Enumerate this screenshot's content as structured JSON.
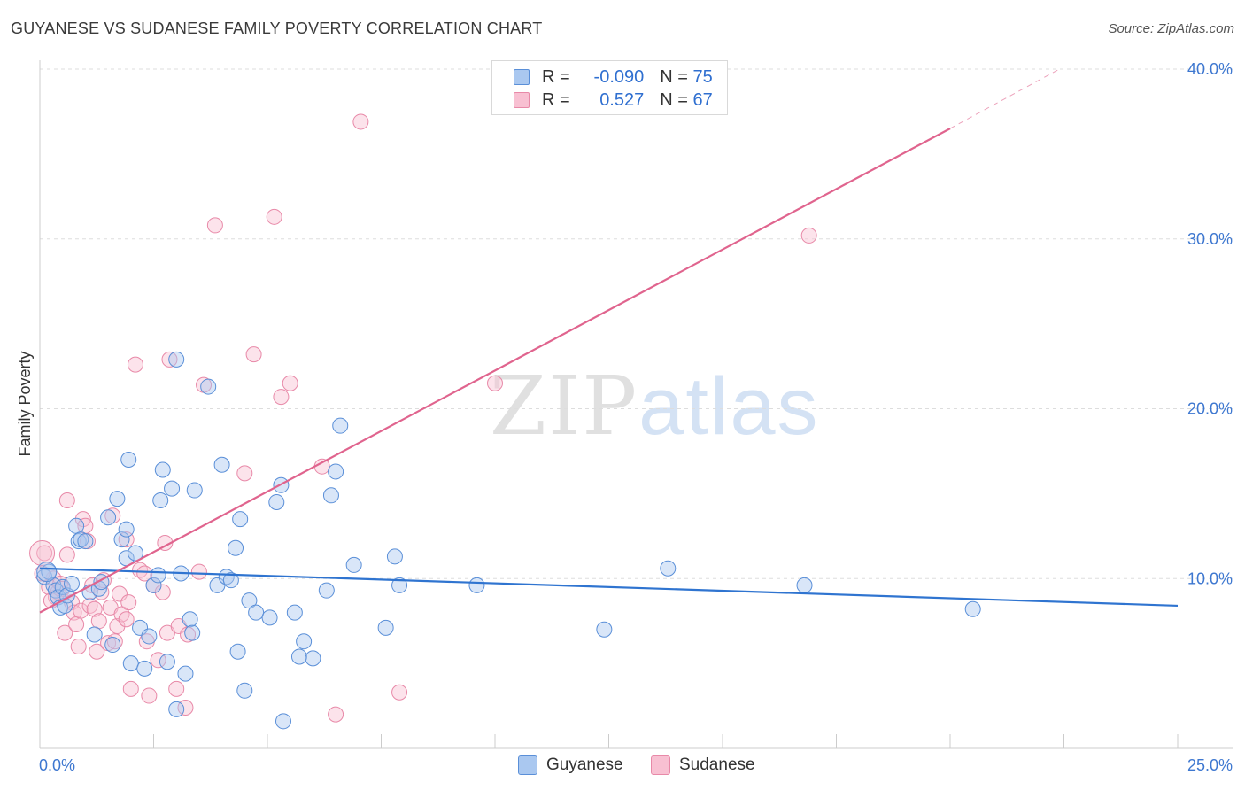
{
  "header": {
    "title": "GUYANESE VS SUDANESE FAMILY POVERTY CORRELATION CHART",
    "source": "Source: ZipAtlas.com"
  },
  "watermark": {
    "zip": "ZIP",
    "atlas": "atlas"
  },
  "colors": {
    "guyanese_fill": "#aac8f0",
    "guyanese_stroke": "#5a8fd8",
    "guyanese_line": "#2f74d0",
    "sudanese_fill": "#f8c0d2",
    "sudanese_stroke": "#e889a8",
    "sudanese_line": "#e0648e",
    "axis_label": "#3d77d0",
    "grid": "#dddddd"
  },
  "legend": {
    "rows": [
      {
        "r_label": "R =",
        "r_value": "-0.090",
        "n_label": "N =",
        "n_value": "75"
      },
      {
        "r_label": "R =",
        "r_value": "0.527",
        "n_label": "N =",
        "n_value": "67"
      }
    ],
    "bottom": [
      {
        "label": "Guyanese"
      },
      {
        "label": "Sudanese"
      }
    ]
  },
  "chart_data": {
    "type": "scatter",
    "title": "GUYANESE VS SUDANESE FAMILY POVERTY CORRELATION CHART",
    "xlabel": "",
    "ylabel": "Family Poverty",
    "xlim": [
      0,
      25
    ],
    "ylim": [
      0,
      40
    ],
    "x_tick_labels": [
      "0.0%",
      "25.0%"
    ],
    "y_ticks": [
      10,
      20,
      30,
      40
    ],
    "y_tick_labels": [
      "10.0%",
      "20.0%",
      "30.0%",
      "40.0%"
    ],
    "grid": true,
    "series": [
      {
        "name": "Guyanese",
        "r": -0.09,
        "n": 75,
        "trend": {
          "x0": 0,
          "y0": 10.6,
          "x1": 25,
          "y1": 8.4
        },
        "points": [
          [
            0.1,
            10.1
          ],
          [
            0.2,
            10.4
          ],
          [
            0.3,
            9.6
          ],
          [
            0.35,
            9.3
          ],
          [
            0.4,
            8.9
          ],
          [
            0.45,
            8.3
          ],
          [
            0.5,
            9.5
          ],
          [
            0.55,
            8.4
          ],
          [
            0.6,
            9.0
          ],
          [
            0.7,
            9.7
          ],
          [
            0.8,
            13.1
          ],
          [
            0.85,
            12.2
          ],
          [
            0.9,
            12.3
          ],
          [
            1.0,
            12.2
          ],
          [
            1.1,
            9.2
          ],
          [
            1.2,
            6.7
          ],
          [
            1.3,
            9.4
          ],
          [
            1.35,
            9.8
          ],
          [
            1.5,
            13.6
          ],
          [
            1.6,
            6.1
          ],
          [
            1.7,
            14.7
          ],
          [
            1.8,
            12.3
          ],
          [
            1.9,
            12.9
          ],
          [
            1.9,
            11.2
          ],
          [
            1.95,
            17.0
          ],
          [
            2.0,
            5.0
          ],
          [
            2.1,
            11.5
          ],
          [
            2.2,
            7.1
          ],
          [
            2.3,
            4.7
          ],
          [
            2.4,
            6.6
          ],
          [
            2.5,
            9.6
          ],
          [
            2.6,
            10.2
          ],
          [
            2.65,
            14.6
          ],
          [
            2.7,
            16.4
          ],
          [
            2.8,
            5.1
          ],
          [
            2.9,
            15.3
          ],
          [
            3.0,
            22.9
          ],
          [
            3.0,
            2.3
          ],
          [
            3.1,
            10.3
          ],
          [
            3.2,
            4.4
          ],
          [
            3.3,
            7.6
          ],
          [
            3.35,
            6.8
          ],
          [
            3.4,
            15.2
          ],
          [
            3.7,
            21.3
          ],
          [
            3.9,
            9.6
          ],
          [
            4.0,
            16.7
          ],
          [
            4.1,
            10.1
          ],
          [
            4.2,
            9.9
          ],
          [
            4.3,
            11.8
          ],
          [
            4.35,
            5.7
          ],
          [
            4.4,
            13.5
          ],
          [
            4.5,
            3.4
          ],
          [
            4.6,
            8.7
          ],
          [
            4.75,
            8.0
          ],
          [
            5.05,
            7.7
          ],
          [
            5.2,
            14.5
          ],
          [
            5.3,
            15.5
          ],
          [
            5.35,
            1.6
          ],
          [
            5.6,
            8.0
          ],
          [
            5.7,
            5.4
          ],
          [
            5.8,
            6.3
          ],
          [
            6.0,
            5.3
          ],
          [
            6.3,
            9.3
          ],
          [
            6.4,
            14.9
          ],
          [
            6.5,
            16.3
          ],
          [
            6.6,
            19.0
          ],
          [
            6.9,
            10.8
          ],
          [
            7.6,
            7.1
          ],
          [
            7.8,
            11.3
          ],
          [
            7.9,
            9.6
          ],
          [
            9.6,
            9.6
          ],
          [
            12.4,
            7.0
          ],
          [
            13.8,
            10.6
          ],
          [
            16.8,
            9.6
          ],
          [
            20.5,
            8.2
          ]
        ]
      },
      {
        "name": "Sudanese",
        "r": 0.527,
        "n": 67,
        "trend": {
          "x0": 0,
          "y0": 8.0,
          "x1": 20,
          "y1": 36.5,
          "dash_x1": 22.4,
          "dash_y1": 40.0
        },
        "points": [
          [
            0.1,
            11.5
          ],
          [
            0.2,
            9.5
          ],
          [
            0.3,
            10.0
          ],
          [
            0.35,
            8.9
          ],
          [
            0.4,
            9.2
          ],
          [
            0.45,
            9.7
          ],
          [
            0.5,
            9.4
          ],
          [
            0.55,
            6.8
          ],
          [
            0.6,
            11.4
          ],
          [
            0.6,
            14.6
          ],
          [
            0.7,
            8.6
          ],
          [
            0.75,
            8.0
          ],
          [
            0.8,
            7.3
          ],
          [
            0.85,
            6.0
          ],
          [
            0.9,
            8.1
          ],
          [
            0.95,
            13.5
          ],
          [
            1.0,
            13.1
          ],
          [
            1.05,
            12.2
          ],
          [
            1.1,
            8.4
          ],
          [
            1.15,
            9.6
          ],
          [
            1.2,
            8.2
          ],
          [
            1.25,
            5.7
          ],
          [
            1.3,
            7.5
          ],
          [
            1.35,
            9.2
          ],
          [
            1.4,
            9.9
          ],
          [
            1.5,
            6.2
          ],
          [
            1.55,
            8.3
          ],
          [
            1.6,
            13.7
          ],
          [
            1.65,
            6.3
          ],
          [
            1.7,
            7.2
          ],
          [
            1.75,
            9.1
          ],
          [
            1.8,
            7.9
          ],
          [
            1.9,
            12.3
          ],
          [
            1.9,
            7.6
          ],
          [
            1.95,
            8.6
          ],
          [
            2.0,
            3.5
          ],
          [
            2.1,
            22.6
          ],
          [
            2.2,
            10.5
          ],
          [
            2.3,
            10.3
          ],
          [
            2.35,
            6.3
          ],
          [
            2.4,
            3.1
          ],
          [
            2.5,
            9.6
          ],
          [
            2.6,
            5.2
          ],
          [
            2.7,
            9.2
          ],
          [
            2.75,
            12.1
          ],
          [
            2.8,
            6.8
          ],
          [
            2.85,
            22.9
          ],
          [
            3.0,
            3.5
          ],
          [
            3.05,
            7.2
          ],
          [
            3.2,
            2.4
          ],
          [
            3.25,
            6.7
          ],
          [
            3.5,
            10.4
          ],
          [
            3.6,
            21.4
          ],
          [
            3.85,
            30.8
          ],
          [
            4.5,
            16.2
          ],
          [
            4.7,
            23.2
          ],
          [
            5.15,
            31.3
          ],
          [
            5.3,
            20.7
          ],
          [
            5.5,
            21.5
          ],
          [
            6.2,
            16.6
          ],
          [
            6.5,
            2.0
          ],
          [
            7.05,
            36.9
          ],
          [
            7.9,
            3.3
          ],
          [
            10.0,
            21.5
          ],
          [
            16.9,
            30.2
          ],
          [
            0.05,
            10.3
          ],
          [
            0.25,
            8.7
          ]
        ]
      }
    ]
  }
}
